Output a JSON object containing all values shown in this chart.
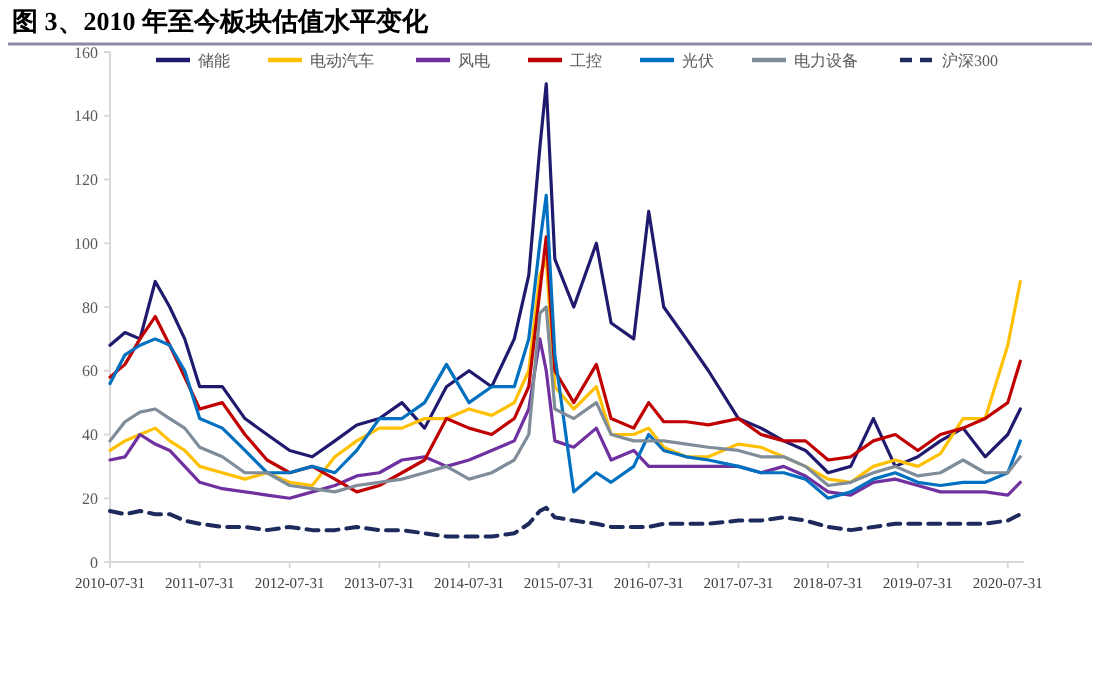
{
  "chart_data": {
    "type": "line",
    "title": "图 3、2010 年至今板块估值水平变化",
    "x": [
      "2010-07-31",
      "2010-09-30",
      "2010-11-30",
      "2011-01-31",
      "2011-03-31",
      "2011-05-31",
      "2011-07-31",
      "2011-10-31",
      "2012-01-31",
      "2012-04-30",
      "2012-07-31",
      "2012-10-31",
      "2013-01-31",
      "2013-04-30",
      "2013-07-31",
      "2013-10-31",
      "2014-01-31",
      "2014-04-30",
      "2014-07-31",
      "2014-10-31",
      "2015-01-31",
      "2015-03-31",
      "2015-05-15",
      "2015-06-10",
      "2015-07-15",
      "2015-09-30",
      "2015-12-31",
      "2016-02-29",
      "2016-05-31",
      "2016-07-31",
      "2016-09-30",
      "2016-12-31",
      "2017-03-31",
      "2017-07-31",
      "2017-10-31",
      "2018-01-31",
      "2018-04-30",
      "2018-07-31",
      "2018-10-31",
      "2019-01-31",
      "2019-04-30",
      "2019-07-31",
      "2019-10-31",
      "2020-01-31",
      "2020-04-30",
      "2020-07-31",
      "2020-09-20"
    ],
    "series": [
      {
        "name": "储能",
        "color": "#1f1a6e",
        "values": [
          68,
          72,
          70,
          88,
          80,
          70,
          55,
          55,
          45,
          40,
          35,
          33,
          38,
          43,
          45,
          50,
          42,
          55,
          60,
          55,
          70,
          90,
          130,
          150,
          95,
          80,
          100,
          75,
          70,
          110,
          80,
          70,
          60,
          45,
          42,
          38,
          35,
          28,
          30,
          45,
          30,
          33,
          38,
          42,
          33,
          40,
          48
        ]
      },
      {
        "name": "电动汽车",
        "color": "#ffc000",
        "values": [
          35,
          38,
          40,
          42,
          38,
          35,
          30,
          28,
          26,
          28,
          25,
          24,
          33,
          38,
          42,
          42,
          45,
          45,
          48,
          46,
          50,
          60,
          90,
          95,
          55,
          48,
          55,
          40,
          40,
          42,
          36,
          33,
          33,
          37,
          36,
          33,
          30,
          26,
          25,
          30,
          32,
          30,
          34,
          45,
          45,
          68,
          88
        ]
      },
      {
        "name": "风电",
        "color": "#7030a0",
        "values": [
          32,
          33,
          40,
          37,
          35,
          30,
          25,
          23,
          22,
          21,
          20,
          22,
          24,
          27,
          28,
          32,
          33,
          30,
          32,
          35,
          38,
          48,
          70,
          60,
          38,
          36,
          42,
          32,
          35,
          30,
          30,
          30,
          30,
          30,
          28,
          30,
          27,
          22,
          21,
          25,
          26,
          24,
          22,
          22,
          22,
          21,
          25
        ]
      },
      {
        "name": "工控",
        "color": "#c00000",
        "values": [
          58,
          62,
          70,
          77,
          68,
          58,
          48,
          50,
          40,
          32,
          28,
          30,
          26,
          22,
          24,
          28,
          32,
          45,
          42,
          40,
          45,
          55,
          85,
          102,
          60,
          50,
          62,
          45,
          42,
          50,
          44,
          44,
          43,
          45,
          40,
          38,
          38,
          32,
          33,
          38,
          40,
          35,
          40,
          42,
          45,
          50,
          63
        ]
      },
      {
        "name": "光伏",
        "color": "#0070c0",
        "values": [
          56,
          65,
          68,
          70,
          68,
          60,
          45,
          42,
          35,
          28,
          28,
          30,
          28,
          35,
          45,
          45,
          50,
          62,
          50,
          55,
          55,
          70,
          100,
          115,
          65,
          22,
          28,
          25,
          30,
          40,
          35,
          33,
          32,
          30,
          28,
          28,
          26,
          20,
          22,
          26,
          28,
          25,
          24,
          25,
          25,
          28,
          38
        ]
      },
      {
        "name": "电力设备",
        "color": "#7f8c99",
        "values": [
          38,
          44,
          47,
          48,
          45,
          42,
          36,
          33,
          28,
          28,
          24,
          23,
          22,
          24,
          25,
          26,
          28,
          30,
          26,
          28,
          32,
          40,
          78,
          80,
          48,
          45,
          50,
          40,
          38,
          38,
          38,
          37,
          36,
          35,
          33,
          33,
          30,
          24,
          25,
          28,
          30,
          27,
          28,
          32,
          28,
          28,
          33
        ]
      },
      {
        "name": "沪深300",
        "color": "#1f2a5c",
        "line_style": "dashed",
        "values": [
          16,
          15,
          16,
          15,
          15,
          13,
          12,
          11,
          11,
          10,
          11,
          10,
          10,
          11,
          10,
          10,
          9,
          8,
          8,
          8,
          9,
          12,
          16,
          17,
          14,
          13,
          12,
          11,
          11,
          11,
          12,
          12,
          12,
          13,
          13,
          14,
          13,
          11,
          10,
          11,
          12,
          12,
          12,
          12,
          12,
          13,
          15
        ]
      }
    ],
    "xlim": [
      "2010-07-31",
      "2020-10-05"
    ],
    "xticks": [
      "2010-07-31",
      "2011-07-31",
      "2012-07-31",
      "2013-07-31",
      "2014-07-31",
      "2015-07-31",
      "2016-07-31",
      "2017-07-31",
      "2018-07-31",
      "2019-07-31",
      "2020-07-31"
    ],
    "ylim": [
      0,
      160
    ],
    "yticks": [
      0,
      20,
      40,
      60,
      80,
      100,
      120,
      140,
      160
    ],
    "grid": false,
    "legend": "top"
  }
}
